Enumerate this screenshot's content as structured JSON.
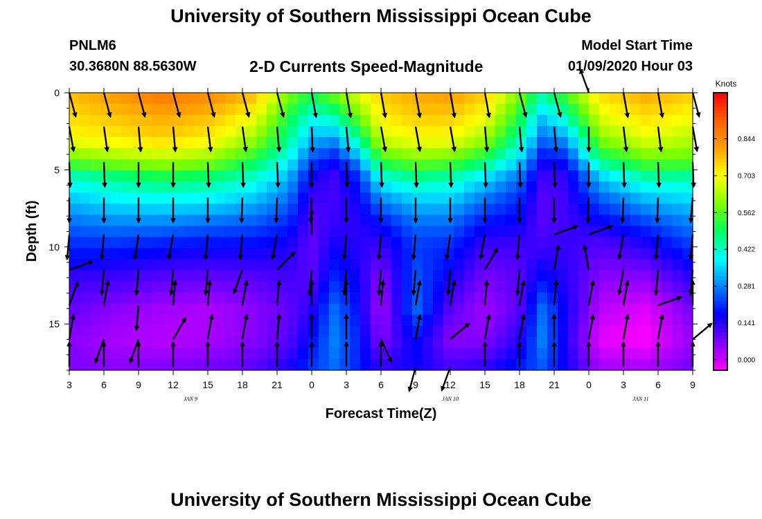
{
  "header": {
    "title": "University of Southern Mississippi Ocean Cube",
    "station_id": "PNLM6",
    "station_coords": "30.3680N 88.5630W",
    "model_start_label": "Model Start Time",
    "model_start_value": "01/09/2020 Hour 03"
  },
  "footer": {
    "title": "University of Southern Mississippi Ocean Cube"
  },
  "chart_data": {
    "type": "heatmap",
    "title": "2-D Currents Speed-Magnitude",
    "xlabel": "Forecast Time(Z)",
    "ylabel": "Depth (ft)",
    "x_tick_labels": [
      "3",
      "6",
      "9",
      "12",
      "15",
      "18",
      "21",
      "0",
      "3",
      "6",
      "9",
      "12",
      "15",
      "18",
      "21",
      "0",
      "3",
      "6",
      "9"
    ],
    "x_hours": [
      0,
      54
    ],
    "date_labels": [
      {
        "label": "JAN  9",
        "hour": 10.5
      },
      {
        "label": "JAN  10",
        "hour": 33
      },
      {
        "label": "JAN  11",
        "hour": 49.5
      }
    ],
    "y_ticks": [
      0,
      5,
      10,
      15
    ],
    "ylim": [
      0,
      18
    ],
    "colorbar": {
      "title": "Knots",
      "ticks": [
        0.0,
        0.141,
        0.281,
        0.422,
        0.562,
        0.703,
        0.844
      ],
      "range": [
        -0.04,
        1.02
      ]
    },
    "colors": {
      "stops": [
        "#ff00ff",
        "#8000ff",
        "#0000ff",
        "#0080ff",
        "#00ffff",
        "#00ff60",
        "#80ff00",
        "#ffff00",
        "#ffa000",
        "#ff6000",
        "#ff0000"
      ],
      "frame": "#000000"
    },
    "speed_profile_depths": [
      0,
      1.5,
      3,
      4.5,
      5.5,
      7,
      8.5,
      10,
      12,
      14,
      16,
      18
    ],
    "speed_profiles": [
      {
        "hour": 0,
        "speeds": [
          0.78,
          0.74,
          0.7,
          0.56,
          0.42,
          0.33,
          0.26,
          0.2,
          0.13,
          0.09,
          0.06,
          0.07
        ]
      },
      {
        "hour": 4,
        "speeds": [
          0.82,
          0.77,
          0.72,
          0.6,
          0.46,
          0.37,
          0.28,
          0.2,
          0.12,
          0.06,
          0.03,
          0.06
        ]
      },
      {
        "hour": 8,
        "speeds": [
          0.88,
          0.8,
          0.75,
          0.62,
          0.5,
          0.38,
          0.28,
          0.18,
          0.1,
          0.04,
          0.02,
          0.07
        ]
      },
      {
        "hour": 12,
        "speeds": [
          0.85,
          0.78,
          0.72,
          0.6,
          0.48,
          0.37,
          0.26,
          0.17,
          0.09,
          0.03,
          0.03,
          0.08
        ]
      },
      {
        "hour": 16,
        "speeds": [
          0.78,
          0.7,
          0.62,
          0.5,
          0.42,
          0.33,
          0.24,
          0.17,
          0.1,
          0.06,
          0.06,
          0.1
        ]
      },
      {
        "hour": 19,
        "speeds": [
          0.6,
          0.52,
          0.46,
          0.38,
          0.32,
          0.26,
          0.2,
          0.15,
          0.12,
          0.09,
          0.1,
          0.15
        ]
      },
      {
        "hour": 21,
        "speeds": [
          0.52,
          0.4,
          0.32,
          0.22,
          0.16,
          0.12,
          0.1,
          0.09,
          0.1,
          0.14,
          0.18,
          0.22
        ]
      },
      {
        "hour": 23,
        "speeds": [
          0.6,
          0.45,
          0.3,
          0.17,
          0.12,
          0.12,
          0.13,
          0.16,
          0.2,
          0.26,
          0.28,
          0.26
        ]
      },
      {
        "hour": 25,
        "speeds": [
          0.68,
          0.58,
          0.45,
          0.28,
          0.2,
          0.16,
          0.14,
          0.14,
          0.16,
          0.18,
          0.2,
          0.2
        ]
      },
      {
        "hour": 27,
        "speeds": [
          0.76,
          0.72,
          0.66,
          0.52,
          0.4,
          0.28,
          0.18,
          0.12,
          0.06,
          0.03,
          0.06,
          0.14
        ]
      },
      {
        "hour": 30,
        "speeds": [
          0.8,
          0.76,
          0.7,
          0.58,
          0.46,
          0.34,
          0.26,
          0.22,
          0.24,
          0.26,
          0.18,
          0.16
        ]
      },
      {
        "hour": 33,
        "speeds": [
          0.82,
          0.76,
          0.7,
          0.56,
          0.44,
          0.34,
          0.26,
          0.2,
          0.16,
          0.1,
          0.06,
          0.12
        ]
      },
      {
        "hour": 36,
        "speeds": [
          0.76,
          0.7,
          0.62,
          0.48,
          0.36,
          0.26,
          0.18,
          0.12,
          0.07,
          0.04,
          0.06,
          0.14
        ]
      },
      {
        "hour": 39,
        "speeds": [
          0.6,
          0.52,
          0.44,
          0.34,
          0.26,
          0.2,
          0.16,
          0.12,
          0.1,
          0.1,
          0.14,
          0.2
        ]
      },
      {
        "hour": 41,
        "speeds": [
          0.46,
          0.34,
          0.26,
          0.16,
          0.12,
          0.1,
          0.1,
          0.12,
          0.18,
          0.26,
          0.28,
          0.24
        ]
      },
      {
        "hour": 43,
        "speeds": [
          0.56,
          0.44,
          0.3,
          0.18,
          0.13,
          0.12,
          0.12,
          0.13,
          0.14,
          0.16,
          0.15,
          0.16
        ]
      },
      {
        "hour": 46,
        "speeds": [
          0.74,
          0.68,
          0.6,
          0.46,
          0.34,
          0.24,
          0.16,
          0.1,
          0.06,
          0.02,
          -0.02,
          0.04
        ]
      },
      {
        "hour": 50,
        "speeds": [
          0.8,
          0.74,
          0.68,
          0.56,
          0.44,
          0.32,
          0.22,
          0.14,
          0.06,
          -0.01,
          -0.04,
          0.04
        ]
      },
      {
        "hour": 54,
        "speeds": [
          0.76,
          0.7,
          0.64,
          0.56,
          0.44,
          0.35,
          0.28,
          0.22,
          0.14,
          0.08,
          0.05,
          0.08
        ]
      }
    ],
    "vector_hours": [
      0,
      3,
      6,
      9,
      12,
      15,
      18,
      21,
      24,
      27,
      30,
      33,
      36,
      39,
      42,
      45,
      48,
      51,
      54
    ],
    "vector_depths": [
      0,
      2.2,
      4.5,
      6.8,
      9.2,
      11.5,
      13.8,
      16,
      17.8
    ],
    "vector_angles_deg": [
      [
        75,
        75,
        75,
        75,
        75,
        75,
        75,
        80,
        80,
        80,
        80,
        80,
        80,
        75,
        75,
        250,
        80,
        80,
        75
      ],
      [
        80,
        82,
        85,
        85,
        83,
        82,
        85,
        88,
        85,
        80,
        80,
        80,
        85,
        85,
        85,
        90,
        83,
        83,
        80
      ],
      [
        88,
        88,
        90,
        90,
        88,
        88,
        88,
        90,
        88,
        88,
        88,
        88,
        88,
        88,
        88,
        90,
        88,
        88,
        88
      ],
      [
        90,
        90,
        90,
        90,
        90,
        92,
        92,
        92,
        90,
        90,
        90,
        90,
        90,
        90,
        90,
        92,
        92,
        92,
        95
      ],
      [
        95,
        95,
        98,
        100,
        95,
        95,
        100,
        270,
        95,
        95,
        95,
        98,
        100,
        95,
        -20,
        -20,
        100,
        95,
        95
      ],
      [
        -20,
        95,
        95,
        95,
        95,
        110,
        -45,
        95,
        95,
        95,
        95,
        95,
        300,
        95,
        280,
        -100,
        100,
        95,
        95
      ],
      [
        -70,
        -80,
        95,
        -85,
        -85,
        -80,
        -85,
        -90,
        -90,
        -85,
        -80,
        -80,
        -85,
        -80,
        -85,
        -80,
        -80,
        -20,
        -90
      ],
      [
        -80,
        110,
        110,
        -60,
        -80,
        -80,
        -85,
        -90,
        -90,
        65,
        -80,
        -40,
        -80,
        -80,
        -90,
        -80,
        -80,
        -80,
        -40
      ],
      [
        -90,
        -90,
        -90,
        -90,
        -90,
        -90,
        -90,
        -90,
        -90,
        -90,
        105,
        110,
        -90,
        -90,
        -90,
        -90,
        -90,
        -90,
        -90
      ]
    ]
  }
}
